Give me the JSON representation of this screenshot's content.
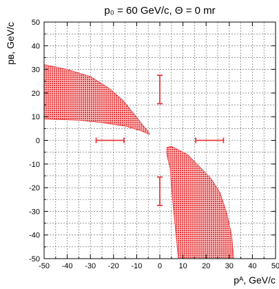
{
  "chart_data": {
    "type": "scatter",
    "title": "p₀ = 60 GeV/c, Θ = 0 mr",
    "xlabel": "pᴬ, GeV/c",
    "ylabel": "pʙ, GeV/c",
    "xlim": [
      -50,
      50
    ],
    "ylim": [
      -50,
      50
    ],
    "xticks": [
      -50,
      -40,
      -30,
      -20,
      -10,
      0,
      10,
      20,
      30,
      40,
      50
    ],
    "yticks": [
      -50,
      -40,
      -30,
      -20,
      -10,
      0,
      10,
      20,
      30,
      40,
      50
    ],
    "grid": true,
    "color": "#e8383b",
    "regions": [
      {
        "points": [
          [
            -50,
            32
          ],
          [
            -40,
            30
          ],
          [
            -30,
            27
          ],
          [
            -22,
            22
          ],
          [
            -16,
            17
          ],
          [
            -11,
            11
          ],
          [
            -7,
            6
          ],
          [
            -4.5,
            3
          ],
          [
            -4.5,
            2.5
          ],
          [
            -8,
            4
          ],
          [
            -15,
            6
          ],
          [
            -25,
            7.5
          ],
          [
            -35,
            8.5
          ],
          [
            -50,
            9
          ]
        ]
      },
      {
        "points": [
          [
            3,
            -3
          ],
          [
            5,
            -2.5
          ],
          [
            8,
            -4
          ],
          [
            12,
            -6
          ],
          [
            17,
            -11
          ],
          [
            22,
            -16
          ],
          [
            26,
            -22
          ],
          [
            29,
            -31
          ],
          [
            31,
            -40
          ],
          [
            32,
            -50
          ],
          [
            8,
            -50
          ],
          [
            7,
            -40
          ],
          [
            6,
            -30
          ],
          [
            5,
            -20
          ],
          [
            4.5,
            -12
          ],
          [
            3,
            -6
          ]
        ]
      }
    ],
    "error_bars": [
      {
        "orientation": "vertical",
        "x": 0,
        "y_from": 15.5,
        "y_to": 27.5
      },
      {
        "orientation": "vertical",
        "x": 0,
        "y_from": -27.5,
        "y_to": -15.5
      },
      {
        "orientation": "horizontal",
        "y": 0,
        "x_from": -27.5,
        "x_to": -15.5
      },
      {
        "orientation": "horizontal",
        "y": 0,
        "x_from": 15.5,
        "x_to": 27.5
      }
    ]
  }
}
